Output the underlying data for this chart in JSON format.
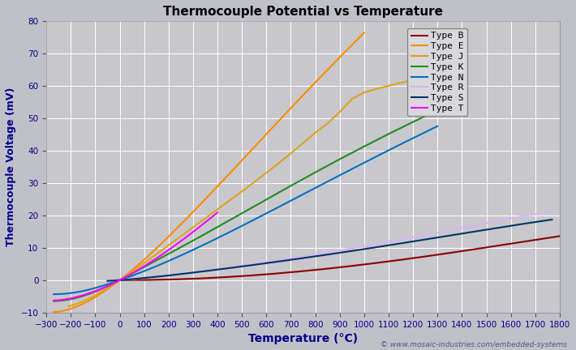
{
  "title": "Thermocouple Potential vs Temperature",
  "xlabel": "Temperature (°C)",
  "ylabel": "Thermocouple Voltage (mV)",
  "xlim": [
    -300,
    1800
  ],
  "ylim": [
    -10,
    80
  ],
  "xticks": [
    -300,
    -200,
    -100,
    0,
    100,
    200,
    300,
    400,
    500,
    600,
    700,
    800,
    900,
    1000,
    1100,
    1200,
    1300,
    1400,
    1500,
    1600,
    1700,
    1800
  ],
  "yticks": [
    -10,
    0,
    10,
    20,
    30,
    40,
    50,
    60,
    70,
    80
  ],
  "background_color": "#c0c0c8",
  "plot_bg_color": "#c8c8cc",
  "grid_color": "#ffffff",
  "watermark": "© www.mosaic-industries.com/embedded-systems",
  "series": [
    {
      "label": "Type B",
      "color": "#8b0000",
      "type": "B"
    },
    {
      "label": "Type E",
      "color": "#ff8c00",
      "type": "E"
    },
    {
      "label": "Type J",
      "color": "#daa520",
      "type": "J"
    },
    {
      "label": "Type K",
      "color": "#228b22",
      "type": "K"
    },
    {
      "label": "Type N",
      "color": "#0070c0",
      "type": "N"
    },
    {
      "label": "Type R",
      "color": "#d8b4f8",
      "type": "R"
    },
    {
      "label": "Type S",
      "color": "#003366",
      "type": "S"
    },
    {
      "label": "Type T",
      "color": "#ff00ff",
      "type": "T"
    }
  ]
}
